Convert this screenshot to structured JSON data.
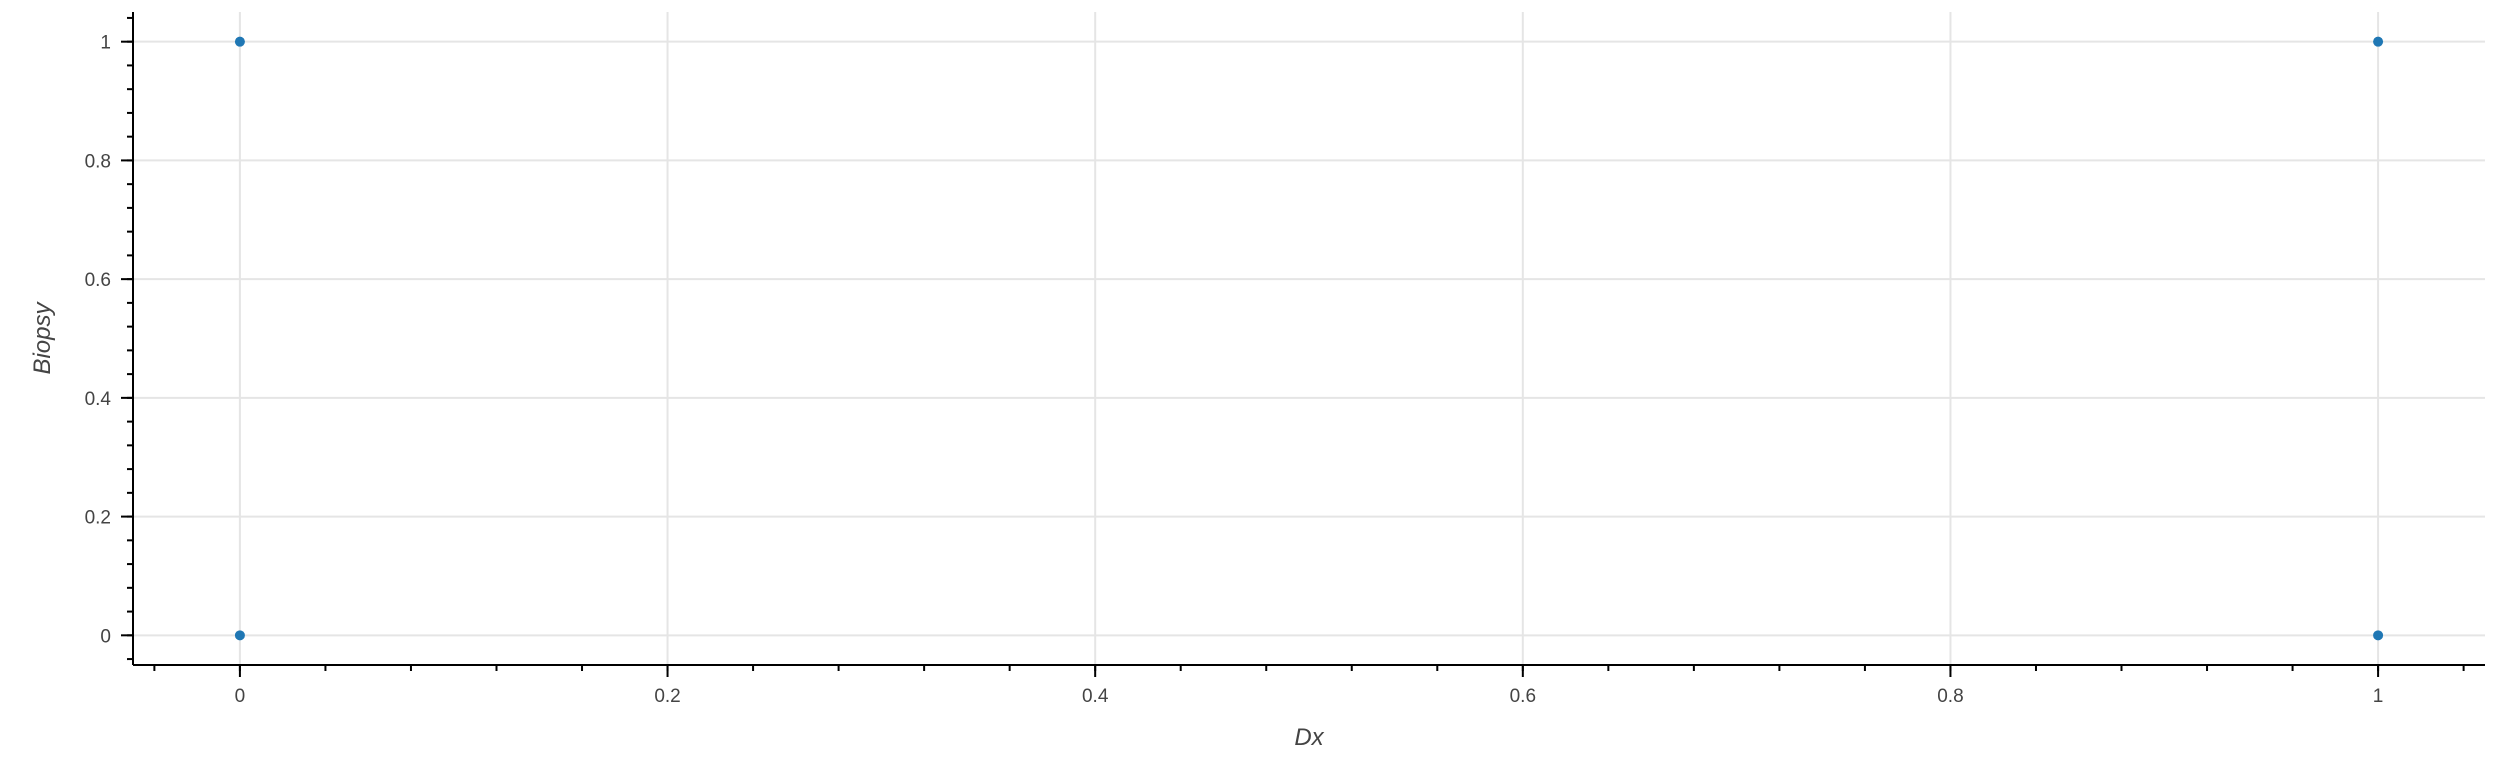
{
  "chart_data": {
    "type": "scatter",
    "xlabel": "Dx",
    "ylabel": "Biopsy",
    "xlim": [
      -0.05,
      1.05
    ],
    "ylim": [
      -0.05,
      1.05
    ],
    "x_ticks": [
      0,
      0.2,
      0.4,
      0.6,
      0.8,
      1
    ],
    "x_tick_labels": [
      "0",
      "0.2",
      "0.4",
      "0.6",
      "0.8",
      "1"
    ],
    "y_ticks": [
      0,
      0.2,
      0.4,
      0.6,
      0.8,
      1
    ],
    "y_tick_labels": [
      "0",
      "0.2",
      "0.4",
      "0.6",
      "0.8",
      "1"
    ],
    "x_minor_step": 0.04,
    "y_minor_step": 0.04,
    "grid": true,
    "series": [
      {
        "x": [
          0,
          0,
          1,
          1
        ],
        "y": [
          1,
          0,
          1,
          0
        ]
      }
    ],
    "colors": {
      "point": "#1f77b4",
      "grid": "#e5e5e5",
      "axis": "#000000",
      "text": "#444444"
    }
  }
}
